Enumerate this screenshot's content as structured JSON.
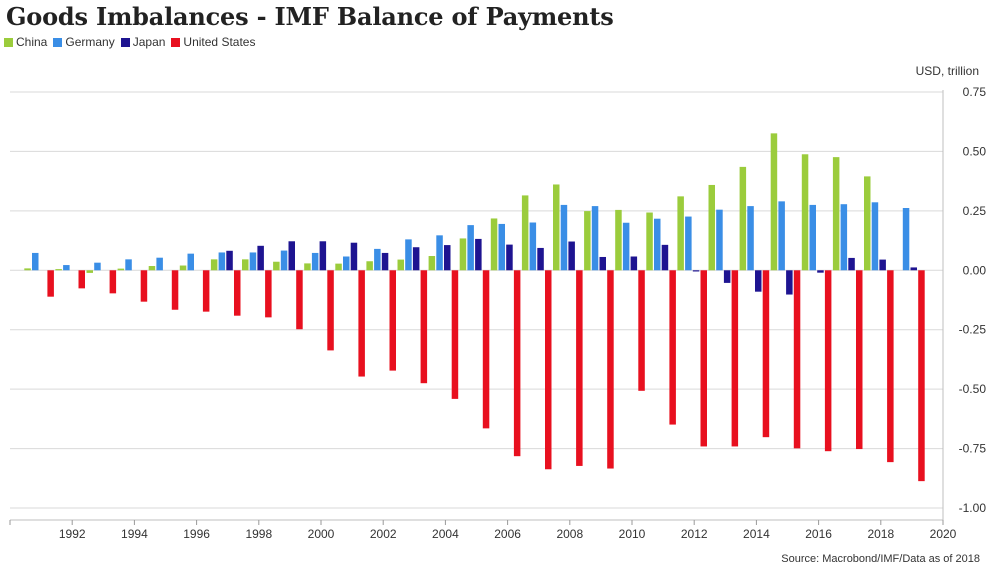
{
  "chart_data": {
    "type": "bar",
    "title": "Goods Imbalances - IMF Balance of Payments",
    "ylabel": "USD, trillion",
    "source": "Source: Macrobond/IMF/Data as of 2018",
    "x": [
      1991,
      1992,
      1993,
      1994,
      1995,
      1996,
      1997,
      1998,
      1999,
      2000,
      2001,
      2002,
      2003,
      2004,
      2005,
      2006,
      2007,
      2008,
      2009,
      2010,
      2011,
      2012,
      2013,
      2014,
      2015,
      2016,
      2017,
      2018,
      2019
    ],
    "series": [
      {
        "name": "China",
        "color": "#9bcc3c",
        "values": [
          0.008,
          0.005,
          -0.011,
          0.007,
          0.018,
          0.02,
          0.046,
          0.046,
          0.036,
          0.029,
          0.028,
          0.038,
          0.045,
          0.06,
          0.134,
          0.218,
          0.315,
          0.361,
          0.249,
          0.254,
          0.243,
          0.311,
          0.359,
          0.435,
          0.576,
          0.488,
          0.476,
          0.395,
          null
        ]
      },
      {
        "name": "Germany",
        "color": "#3a8ee6",
        "values": [
          0.073,
          0.022,
          0.032,
          0.046,
          0.053,
          0.07,
          0.075,
          0.075,
          0.083,
          0.073,
          0.058,
          0.09,
          0.13,
          0.147,
          0.19,
          0.195,
          0.201,
          0.275,
          0.27,
          0.2,
          0.217,
          0.226,
          0.255,
          0.27,
          0.29,
          0.275,
          0.278,
          0.286,
          0.262
        ]
      },
      {
        "name": "Japan",
        "color": "#1e1491",
        "values": [
          null,
          null,
          null,
          null,
          null,
          null,
          0.082,
          0.103,
          0.122,
          0.122,
          0.116,
          0.073,
          0.097,
          0.106,
          0.132,
          0.108,
          0.094,
          0.121,
          0.056,
          0.058,
          0.107,
          -0.005,
          -0.053,
          -0.09,
          -0.102,
          -0.01,
          0.052,
          0.045,
          0.012
        ]
      },
      {
        "name": "United States",
        "color": "#e8101f",
        "values": [
          -0.111,
          -0.076,
          -0.097,
          -0.132,
          -0.166,
          -0.174,
          -0.191,
          -0.198,
          -0.248,
          -0.337,
          -0.447,
          -0.422,
          -0.475,
          -0.541,
          -0.665,
          -0.782,
          -0.837,
          -0.823,
          -0.834,
          -0.507,
          -0.649,
          -0.741,
          -0.741,
          -0.702,
          -0.749,
          -0.761,
          -0.752,
          -0.807,
          -0.887
        ]
      }
    ],
    "ylim": [
      -1.0,
      0.75
    ],
    "xlim": [
      1990,
      2020
    ],
    "yticks": [
      0.75,
      0.5,
      0.25,
      0.0,
      -0.25,
      -0.5,
      -0.75,
      -1.0
    ],
    "ytick_labels": [
      "0.75",
      "0.50",
      "0.25",
      "0.00",
      "-0.25",
      "-0.50",
      "-0.75",
      "-1.00"
    ],
    "xticks": [
      1992,
      1994,
      1996,
      1998,
      2000,
      2002,
      2004,
      2006,
      2008,
      2010,
      2012,
      2014,
      2016,
      2018,
      2020
    ],
    "xtick_labels": [
      "1992",
      "1994",
      "1996",
      "1998",
      "2000",
      "2002",
      "2004",
      "2006",
      "2008",
      "2010",
      "2012",
      "2014",
      "2016",
      "2018",
      "2020"
    ],
    "grid": true,
    "legend_position": "top-left",
    "y_axis_side": "right"
  }
}
